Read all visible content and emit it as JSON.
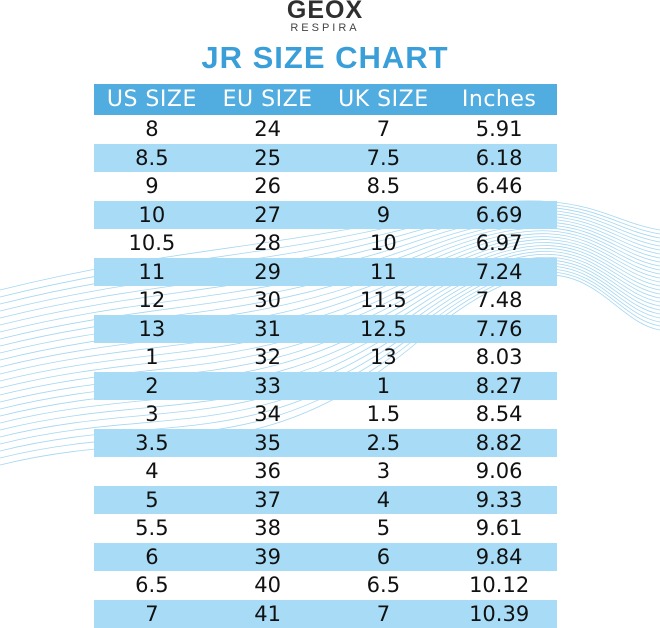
{
  "brand": {
    "name": "GEOX",
    "tagline": "RESPIRA"
  },
  "title": "JR SIZE CHART",
  "colors": {
    "header": "#51ace0",
    "alt_row": "#a8dcf6",
    "title": "#3a9fd8",
    "wave": "#5ab6e6"
  },
  "table": {
    "headers": [
      "US SIZE",
      "EU SIZE",
      "UK SIZE",
      "Inches"
    ],
    "rows": [
      [
        "8",
        "24",
        "7",
        "5.91"
      ],
      [
        "8.5",
        "25",
        "7.5",
        "6.18"
      ],
      [
        "9",
        "26",
        "8.5",
        "6.46"
      ],
      [
        "10",
        "27",
        "9",
        "6.69"
      ],
      [
        "10.5",
        "28",
        "10",
        "6.97"
      ],
      [
        "11",
        "29",
        "11",
        "7.24"
      ],
      [
        "12",
        "30",
        "11.5",
        "7.48"
      ],
      [
        "13",
        "31",
        "12.5",
        "7.76"
      ],
      [
        "1",
        "32",
        "13",
        "8.03"
      ],
      [
        "2",
        "33",
        "1",
        "8.27"
      ],
      [
        "3",
        "34",
        "1.5",
        "8.54"
      ],
      [
        "3.5",
        "35",
        "2.5",
        "8.82"
      ],
      [
        "4",
        "36",
        "3",
        "9.06"
      ],
      [
        "5",
        "37",
        "4",
        "9.33"
      ],
      [
        "5.5",
        "38",
        "5",
        "9.61"
      ],
      [
        "6",
        "39",
        "6",
        "9.84"
      ],
      [
        "6.5",
        "40",
        "6.5",
        "10.12"
      ],
      [
        "7",
        "41",
        "7",
        "10.39"
      ]
    ]
  }
}
